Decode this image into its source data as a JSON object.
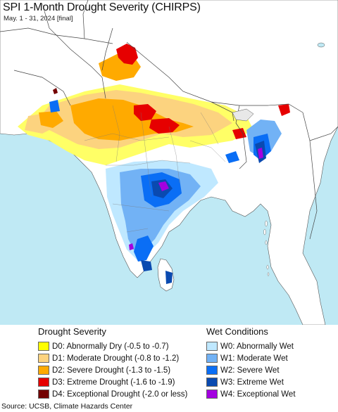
{
  "header": {
    "title": "SPI 1-Month Drought Severity (CHIRPS)",
    "subtitle": "May. 1 - 31, 2024 [final]"
  },
  "legend": {
    "drought_heading": "Drought Severity",
    "wet_heading": "Wet Conditions",
    "drought_items": [
      {
        "label": "D0: Abnormally Dry (-0.5 to -0.7)",
        "color": "#ffff00"
      },
      {
        "label": "D1: Moderate Drought (-0.8 to -1.2)",
        "color": "#fcd37f"
      },
      {
        "label": "D2: Severe Drought (-1.3 to -1.5)",
        "color": "#ffaa00"
      },
      {
        "label": "D3: Extreme Drought (-1.6 to -1.9)",
        "color": "#e60000"
      },
      {
        "label": "D4: Exceptional Drought (-2.0 or less)",
        "color": "#730000"
      }
    ],
    "wet_items": [
      {
        "label": "W0: Abnormally Wet",
        "color": "#bfe8ff"
      },
      {
        "label": "W1: Moderate Wet",
        "color": "#72b2f5"
      },
      {
        "label": "W2: Severe Wet",
        "color": "#0a6ef5"
      },
      {
        "label": "W3: Extreme Wet",
        "color": "#0a4ab0"
      },
      {
        "label": "W4: Exceptional Wet",
        "color": "#a300e0"
      }
    ]
  },
  "footer": {
    "source": "Source: UCSB, Climate Hazards Center"
  },
  "map": {
    "ocean_color": "#bfe9f4",
    "land_color": "#ffffff",
    "border_color": "#555555"
  }
}
